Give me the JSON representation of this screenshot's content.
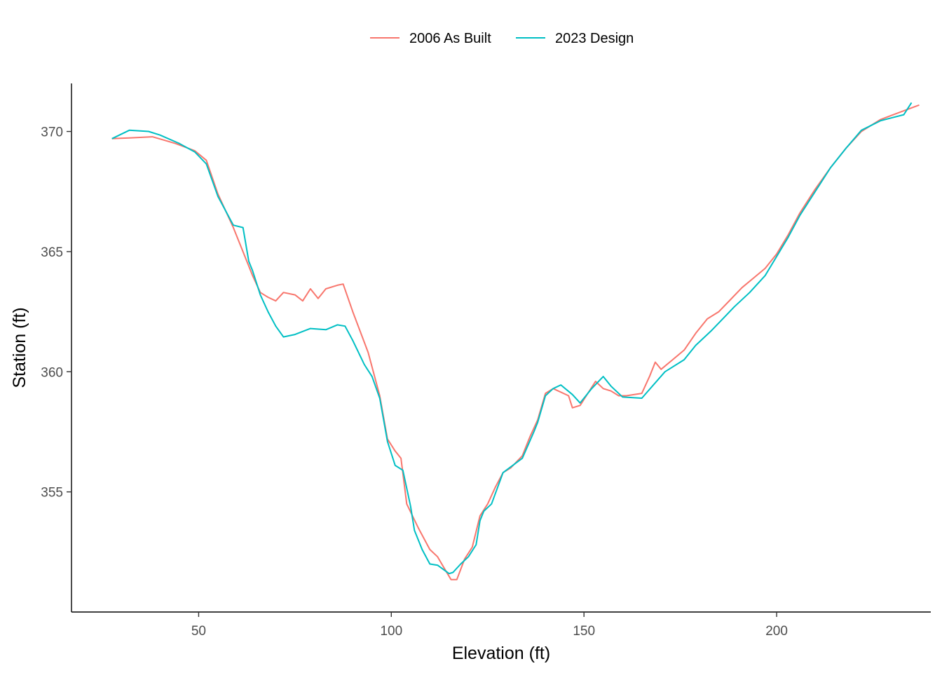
{
  "colors": {
    "series_as_built": "#F8766D",
    "series_design": "#00BFC4"
  },
  "chart_data": {
    "type": "line",
    "xlabel": "Elevation (ft)",
    "ylabel": "Station (ft)",
    "xlim": [
      17,
      240
    ],
    "ylim": [
      350,
      372
    ],
    "x_ticks": [
      50,
      100,
      150,
      200
    ],
    "y_ticks": [
      355,
      360,
      365,
      370
    ],
    "legend_position": "top",
    "grid": false,
    "series": [
      {
        "name": "2006 As Built",
        "color": "#F8766D",
        "points": [
          [
            27.5,
            369.7
          ],
          [
            32,
            369.73
          ],
          [
            38,
            369.78
          ],
          [
            44,
            369.5
          ],
          [
            49,
            369.2
          ],
          [
            52,
            368.8
          ],
          [
            55,
            367.4
          ],
          [
            59,
            366.0
          ],
          [
            62,
            364.8
          ],
          [
            64,
            364.0
          ],
          [
            66,
            363.3
          ],
          [
            68,
            363.1
          ],
          [
            70,
            362.95
          ],
          [
            72,
            363.3
          ],
          [
            75,
            363.2
          ],
          [
            77,
            362.95
          ],
          [
            79,
            363.45
          ],
          [
            81,
            363.05
          ],
          [
            83,
            363.45
          ],
          [
            86,
            363.6
          ],
          [
            87.5,
            363.65
          ],
          [
            90,
            362.5
          ],
          [
            94,
            360.8
          ],
          [
            97,
            359.0
          ],
          [
            99,
            357.2
          ],
          [
            101,
            356.7
          ],
          [
            102.5,
            356.4
          ],
          [
            104,
            354.5
          ],
          [
            107,
            353.5
          ],
          [
            110,
            352.6
          ],
          [
            112,
            352.3
          ],
          [
            114,
            351.75
          ],
          [
            115.5,
            351.35
          ],
          [
            117,
            351.35
          ],
          [
            119,
            352.2
          ],
          [
            121,
            352.7
          ],
          [
            123,
            354.0
          ],
          [
            125,
            354.5
          ],
          [
            127,
            355.2
          ],
          [
            129,
            355.8
          ],
          [
            131,
            356.0
          ],
          [
            134,
            356.5
          ],
          [
            136,
            357.3
          ],
          [
            138,
            358.0
          ],
          [
            140,
            359.1
          ],
          [
            142,
            359.3
          ],
          [
            146,
            359.0
          ],
          [
            147,
            358.5
          ],
          [
            149,
            358.6
          ],
          [
            151,
            359.1
          ],
          [
            153,
            359.6
          ],
          [
            155,
            359.3
          ],
          [
            157,
            359.2
          ],
          [
            159,
            359.0
          ],
          [
            161,
            359.0
          ],
          [
            165,
            359.1
          ],
          [
            167,
            359.8
          ],
          [
            168.5,
            360.4
          ],
          [
            170,
            360.1
          ],
          [
            173,
            360.5
          ],
          [
            176,
            360.9
          ],
          [
            179,
            361.6
          ],
          [
            182,
            362.2
          ],
          [
            185,
            362.5
          ],
          [
            188,
            363.0
          ],
          [
            191,
            363.5
          ],
          [
            194,
            363.9
          ],
          [
            197,
            364.3
          ],
          [
            200,
            364.9
          ],
          [
            203,
            365.7
          ],
          [
            206,
            366.6
          ],
          [
            210,
            367.6
          ],
          [
            214,
            368.5
          ],
          [
            218,
            369.3
          ],
          [
            222,
            370.0
          ],
          [
            227,
            370.5
          ],
          [
            232,
            370.8
          ],
          [
            237,
            371.1
          ]
        ]
      },
      {
        "name": "2023 Design",
        "color": "#00BFC4",
        "points": [
          [
            27.5,
            369.7
          ],
          [
            32,
            370.05
          ],
          [
            37,
            370.0
          ],
          [
            40,
            369.85
          ],
          [
            45,
            369.5
          ],
          [
            49,
            369.15
          ],
          [
            52,
            368.65
          ],
          [
            55,
            367.3
          ],
          [
            59,
            366.1
          ],
          [
            61.5,
            366.0
          ],
          [
            63,
            364.6
          ],
          [
            64,
            364.2
          ],
          [
            66,
            363.2
          ],
          [
            68,
            362.5
          ],
          [
            70,
            361.9
          ],
          [
            72,
            361.45
          ],
          [
            75,
            361.55
          ],
          [
            79,
            361.8
          ],
          [
            83,
            361.75
          ],
          [
            86,
            361.95
          ],
          [
            88,
            361.9
          ],
          [
            90,
            361.3
          ],
          [
            93,
            360.3
          ],
          [
            95,
            359.8
          ],
          [
            97,
            358.9
          ],
          [
            99,
            357.1
          ],
          [
            101,
            356.1
          ],
          [
            103,
            355.9
          ],
          [
            105,
            354.4
          ],
          [
            106,
            353.4
          ],
          [
            108,
            352.6
          ],
          [
            110,
            352.0
          ],
          [
            112,
            351.95
          ],
          [
            115,
            351.6
          ],
          [
            116,
            351.65
          ],
          [
            118,
            352.0
          ],
          [
            120,
            352.3
          ],
          [
            122,
            352.8
          ],
          [
            123,
            353.8
          ],
          [
            124,
            354.2
          ],
          [
            126,
            354.5
          ],
          [
            129,
            355.8
          ],
          [
            134,
            356.4
          ],
          [
            137,
            357.5
          ],
          [
            138,
            357.9
          ],
          [
            140,
            359.0
          ],
          [
            142,
            359.3
          ],
          [
            144,
            359.45
          ],
          [
            147,
            359.05
          ],
          [
            149,
            358.7
          ],
          [
            152,
            359.3
          ],
          [
            155,
            359.8
          ],
          [
            157,
            359.4
          ],
          [
            160,
            358.95
          ],
          [
            165,
            358.9
          ],
          [
            171,
            360.0
          ],
          [
            176,
            360.5
          ],
          [
            179,
            361.1
          ],
          [
            183,
            361.7
          ],
          [
            186,
            362.2
          ],
          [
            189,
            362.7
          ],
          [
            193,
            363.3
          ],
          [
            197,
            364.0
          ],
          [
            200,
            364.8
          ],
          [
            203,
            365.6
          ],
          [
            206,
            366.5
          ],
          [
            210,
            367.5
          ],
          [
            214,
            368.5
          ],
          [
            218,
            369.3
          ],
          [
            222,
            370.05
          ],
          [
            227,
            370.45
          ],
          [
            233,
            370.7
          ],
          [
            235,
            371.2
          ]
        ]
      }
    ]
  }
}
